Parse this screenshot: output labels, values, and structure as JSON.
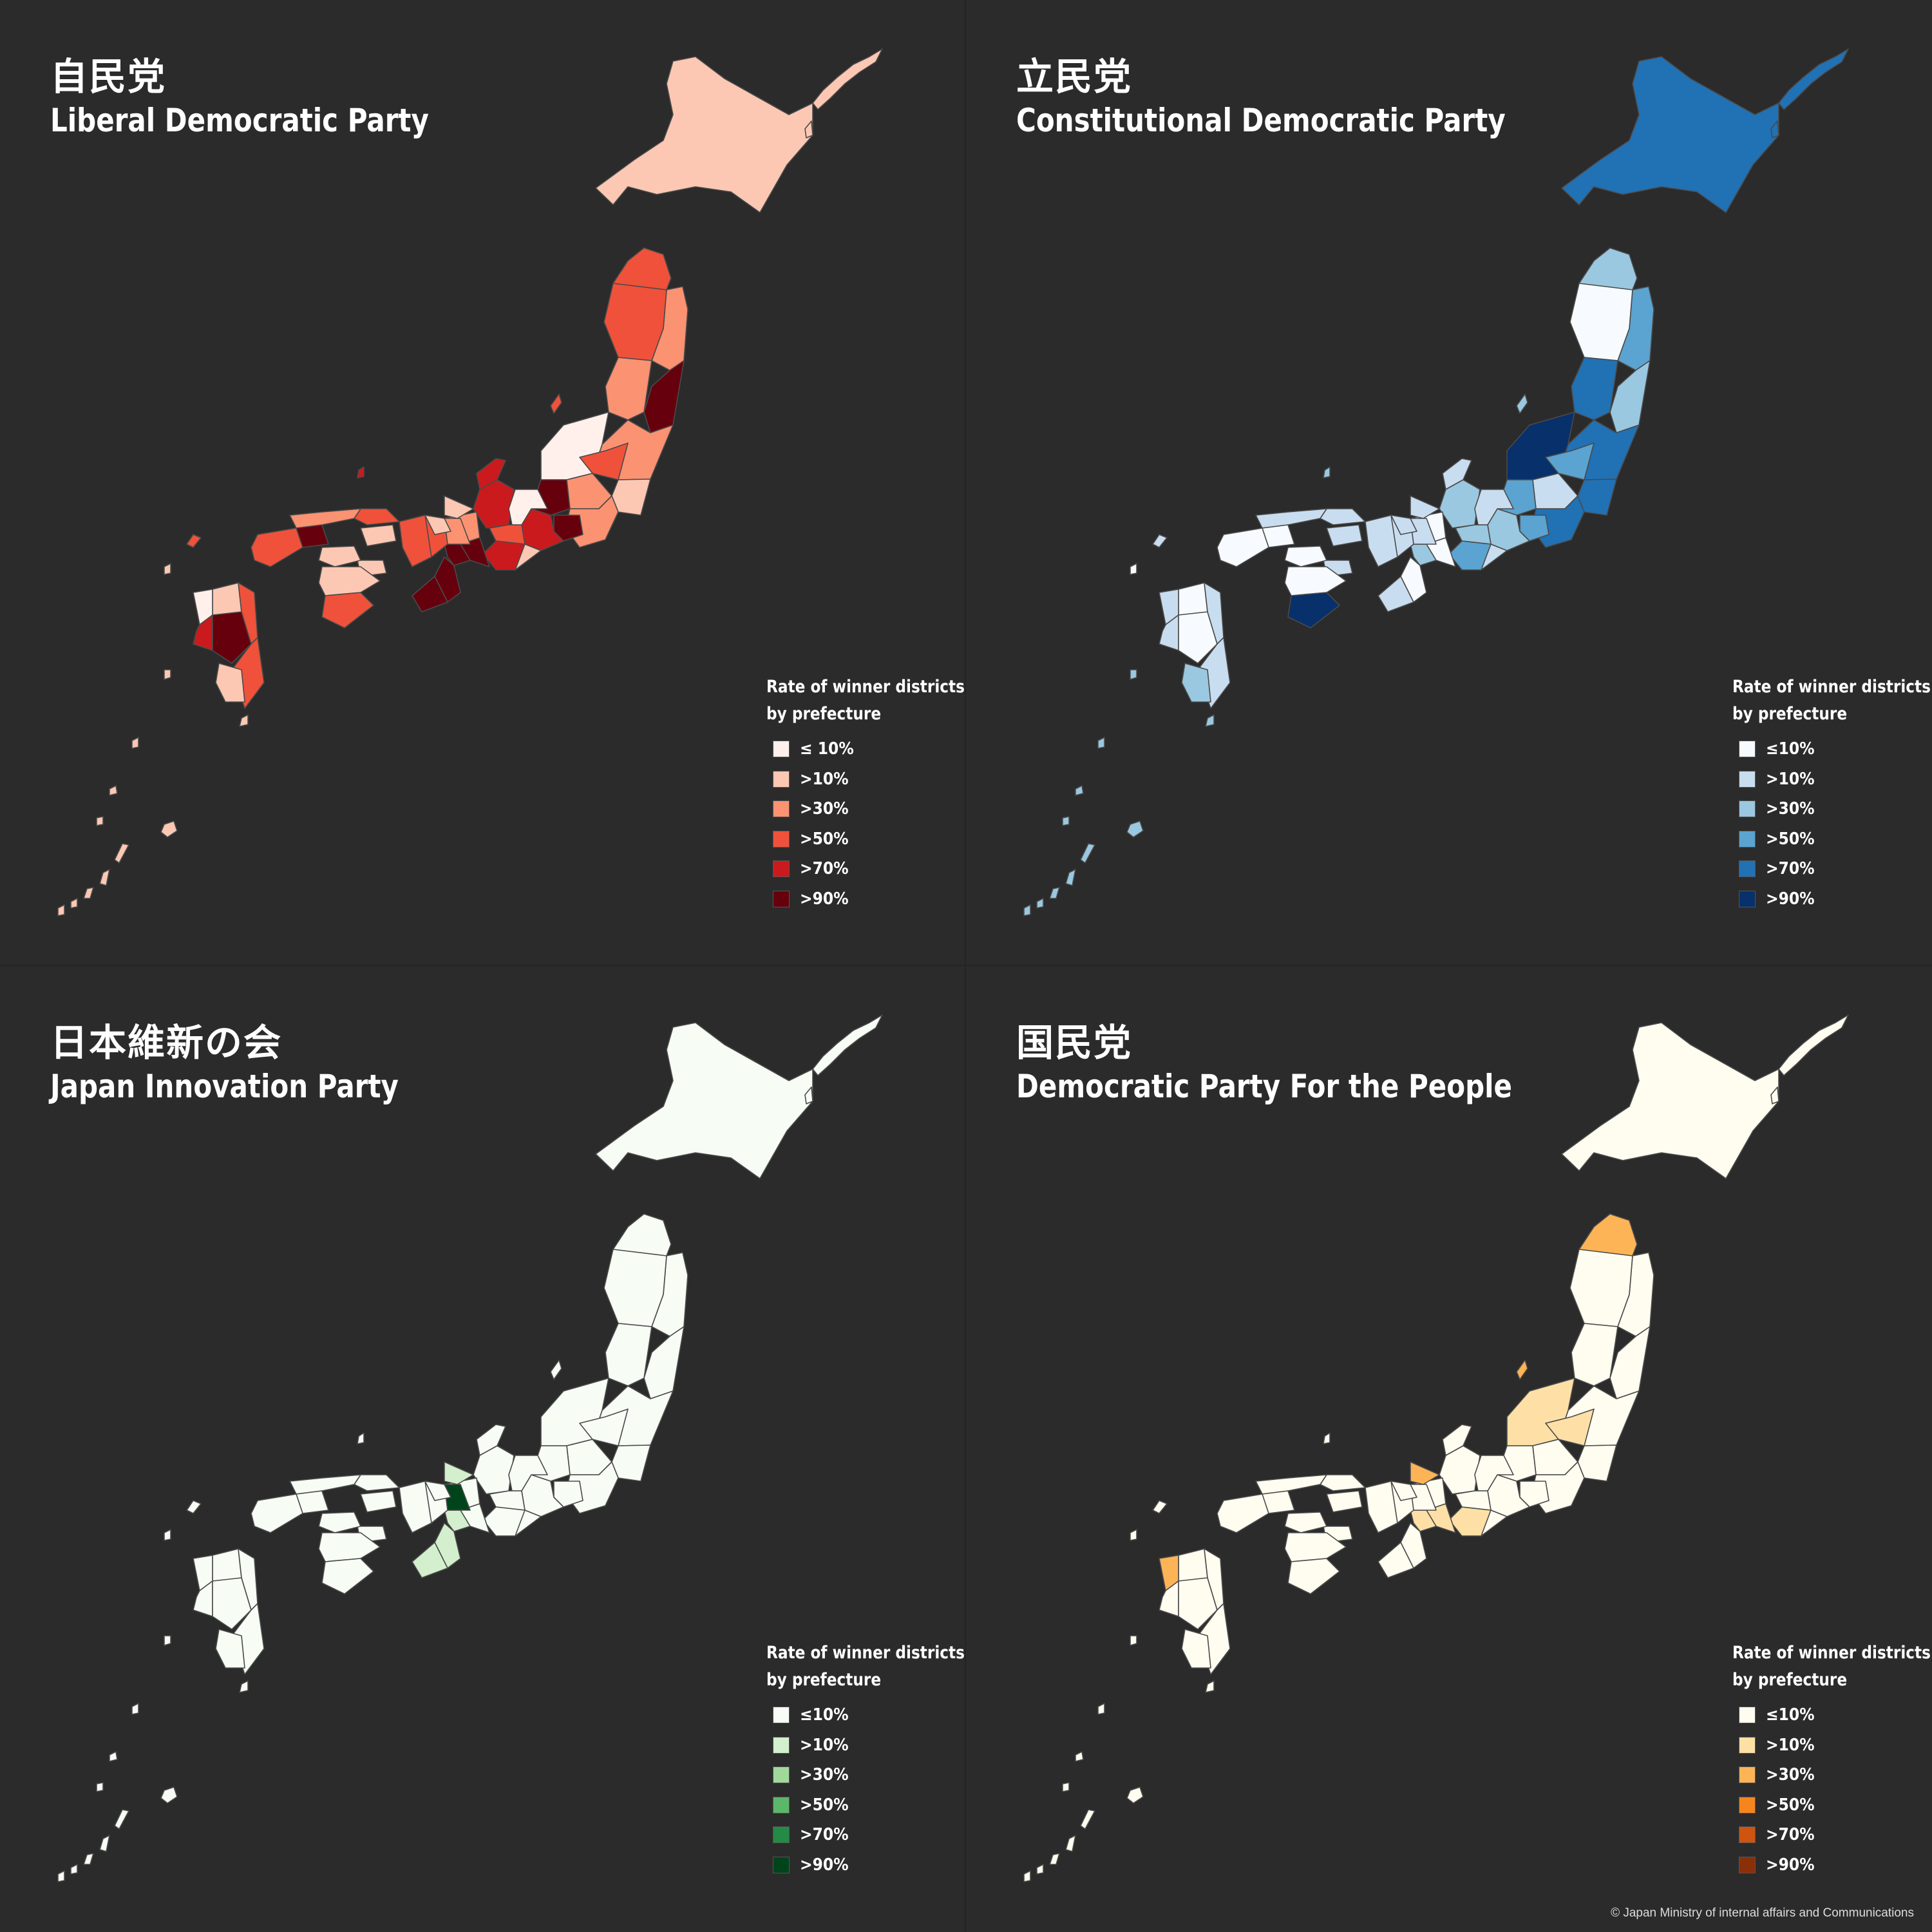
{
  "legend": {
    "title_line1": "Rate of winner districts",
    "title_line2": "by prefecture",
    "labels": [
      "≤ 10%",
      ">10%",
      ">30%",
      ">50%",
      ">70%",
      ">90%"
    ]
  },
  "panels": [
    {
      "title_jp": "自民党",
      "title_en": "Liberal Democratic Party",
      "legend_labels": [
        "≤ 10%",
        ">10%",
        ">30%",
        ">50%",
        ">70%",
        ">90%"
      ],
      "colors": [
        "#fff0ec",
        "#fcc8b3",
        "#fb9272",
        "#f0513a",
        "#cb1a1d",
        "#67000d"
      ],
      "pref_levels": [
        1,
        3,
        2,
        3,
        5,
        2,
        2,
        0,
        1,
        3,
        2,
        5,
        2,
        5,
        4,
        4,
        4,
        2,
        1,
        0,
        3,
        4,
        5,
        5,
        2,
        1,
        3,
        1,
        3,
        5,
        5,
        3,
        2,
        1,
        5,
        3,
        1,
        1,
        1,
        3,
        1,
        0,
        4,
        5,
        3,
        3,
        1
      ]
    },
    {
      "title_jp": "立民党",
      "title_en": "Constitutional Democratic Party",
      "legend_labels": [
        "≤10%",
        ">10%",
        ">30%",
        ">50%",
        ">70%",
        ">90%"
      ],
      "colors": [
        "#f7fbff",
        "#c9ddf0",
        "#9ac8e0",
        "#5ba3d0",
        "#2171b5",
        "#08306b"
      ],
      "pref_levels": [
        4,
        2,
        3,
        0,
        2,
        4,
        4,
        5,
        4,
        3,
        1,
        3,
        4,
        3,
        2,
        1,
        2,
        0,
        1,
        1,
        2,
        3,
        0,
        2,
        1,
        1,
        1,
        1,
        1,
        0,
        1,
        1,
        1,
        1,
        0,
        0,
        1,
        0,
        0,
        5,
        0,
        1,
        1,
        0,
        1,
        1,
        2
      ]
    },
    {
      "title_jp": "日本維新の会",
      "title_en": "Japan Innovation Party",
      "legend_labels": [
        "≤10%",
        ">10%",
        ">30%",
        ">50%",
        ">70%",
        ">90%"
      ],
      "colors": [
        "#f7fcf5",
        "#d3efcd",
        "#a1d99b",
        "#5cb76a",
        "#238b45",
        "#00441b"
      ],
      "pref_levels": [
        0,
        0,
        0,
        0,
        0,
        0,
        0,
        0,
        0,
        0,
        0,
        0,
        0,
        0,
        0,
        0,
        0,
        0,
        0,
        0,
        0,
        0,
        0,
        1,
        5,
        1,
        0,
        0,
        0,
        1,
        1,
        0,
        0,
        0,
        0,
        0,
        0,
        0,
        0,
        0,
        0,
        0,
        0,
        0,
        0,
        0,
        0
      ]
    },
    {
      "title_jp": "国民党",
      "title_en": "Democratic Party For the People",
      "legend_labels": [
        "≤10%",
        ">10%",
        ">30%",
        ">50%",
        ">70%",
        ">90%"
      ],
      "colors": [
        "#fffdf0",
        "#fee0a6",
        "#fdb457",
        "#f6851e",
        "#cf5410",
        "#8a2f07"
      ],
      "pref_levels": [
        0,
        2,
        0,
        0,
        0,
        0,
        0,
        1,
        0,
        1,
        0,
        0,
        0,
        0,
        0,
        0,
        0,
        0,
        0,
        0,
        0,
        1,
        1,
        1,
        0,
        2,
        0,
        0,
        0,
        0,
        0,
        0,
        0,
        0,
        0,
        0,
        0,
        0,
        0,
        0,
        0,
        2,
        0,
        0,
        0,
        0,
        0
      ]
    }
  ],
  "credit": "© Japan Ministry of internal affairs and Communications"
}
